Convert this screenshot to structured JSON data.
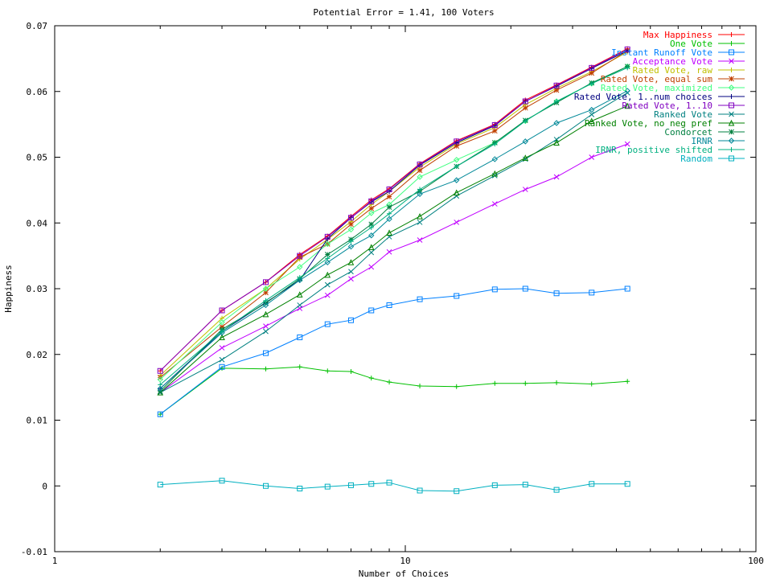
{
  "chart_data": {
    "type": "line",
    "title": "Potential Error = 1.41, 100 Voters",
    "xlabel": "Number of Choices",
    "ylabel": "Happiness",
    "xscale": "log",
    "xlim": [
      1,
      100
    ],
    "ylim": [
      -0.01,
      0.07
    ],
    "xticks": [
      {
        "v": 1,
        "label": "1"
      },
      {
        "v": 10,
        "label": "10"
      },
      {
        "v": 100,
        "label": "100"
      }
    ],
    "yticks": [
      {
        "v": -0.01,
        "label": "-0.01"
      },
      {
        "v": 0,
        "label": "0"
      },
      {
        "v": 0.01,
        "label": "0.01"
      },
      {
        "v": 0.02,
        "label": "0.02"
      },
      {
        "v": 0.03,
        "label": "0.03"
      },
      {
        "v": 0.04,
        "label": "0.04"
      },
      {
        "v": 0.05,
        "label": "0.05"
      },
      {
        "v": 0.06,
        "label": "0.06"
      },
      {
        "v": 0.07,
        "label": "0.07"
      }
    ],
    "grid": false,
    "legend": "top-right",
    "x": [
      2,
      3,
      4,
      5,
      6,
      7,
      8,
      9,
      11,
      14,
      18,
      22,
      27,
      34,
      43
    ],
    "series": [
      {
        "name": "Max Happiness",
        "color": "#ff0000",
        "marker": "plus",
        "values": [
          0.0175,
          0.0267,
          0.031,
          0.0352,
          0.038,
          0.041,
          0.0435,
          0.0452,
          0.049,
          0.0525,
          0.055,
          0.0587,
          0.061,
          0.0637,
          0.0665
        ]
      },
      {
        "name": "One Vote",
        "color": "#00c000",
        "marker": "plus",
        "values": [
          0.0109,
          0.0179,
          0.0178,
          0.0181,
          0.0175,
          0.0174,
          0.0164,
          0.0158,
          0.0152,
          0.0151,
          0.0156,
          0.0156,
          0.0157,
          0.0155,
          0.0159
        ]
      },
      {
        "name": "Instant Runoff Vote",
        "color": "#0080ff",
        "marker": "square",
        "values": [
          0.0109,
          0.0181,
          0.0202,
          0.0226,
          0.0246,
          0.0252,
          0.0267,
          0.0275,
          0.0284,
          0.0289,
          0.0299,
          0.03,
          0.0293,
          0.0294,
          0.03
        ]
      },
      {
        "name": "Acceptance Vote",
        "color": "#c000ff",
        "marker": "x",
        "values": [
          0.0142,
          0.021,
          0.0243,
          0.027,
          0.029,
          0.0315,
          0.0333,
          0.0356,
          0.0374,
          0.0401,
          0.0429,
          0.0451,
          0.047,
          0.05,
          0.052
        ]
      },
      {
        "name": "Rated Vote, raw",
        "color": "#c0c000",
        "marker": "plus",
        "values": [
          0.0168,
          0.0255,
          0.03,
          0.0345,
          0.0375,
          0.0402,
          0.0428,
          0.0448,
          0.0485,
          0.052,
          0.0545,
          0.058,
          0.0605,
          0.063,
          0.066
        ]
      },
      {
        "name": "Rated Vote, equal sum",
        "color": "#c04000",
        "marker": "star",
        "values": [
          0.0165,
          0.0242,
          0.0294,
          0.0348,
          0.0368,
          0.0398,
          0.0422,
          0.044,
          0.048,
          0.0517,
          0.054,
          0.0575,
          0.0602,
          0.0628,
          0.0662
        ]
      },
      {
        "name": "Rated Vote, maximized",
        "color": "#40ff80",
        "marker": "diamond",
        "values": [
          0.0162,
          0.0249,
          0.03,
          0.0333,
          0.0368,
          0.039,
          0.0415,
          0.0428,
          0.047,
          0.0496,
          0.0522,
          0.0555,
          0.0585,
          0.0612,
          0.0638
        ]
      },
      {
        "name": "Rated Vote, 1..num choices",
        "color": "#000080",
        "marker": "plus",
        "values": [
          0.0148,
          0.0235,
          0.0279,
          0.0313,
          0.0376,
          0.0408,
          0.0432,
          0.0448,
          0.0488,
          0.0522,
          0.0548,
          0.0585,
          0.0608,
          0.0635,
          0.0662
        ]
      },
      {
        "name": "Rated Vote, 1..10",
        "color": "#8000c0",
        "marker": "square",
        "values": [
          0.0175,
          0.0267,
          0.031,
          0.035,
          0.0379,
          0.0408,
          0.0433,
          0.0451,
          0.0489,
          0.0524,
          0.0549,
          0.0585,
          0.0609,
          0.0636,
          0.0664
        ]
      },
      {
        "name": "Ranked Vote",
        "color": "#008080",
        "marker": "x",
        "values": [
          0.0142,
          0.0192,
          0.0235,
          0.0275,
          0.0306,
          0.0326,
          0.0355,
          0.0379,
          0.0401,
          0.0441,
          0.0472,
          0.0497,
          0.0527,
          0.0565,
          0.0598
        ]
      },
      {
        "name": "Ranked Vote, no neg pref",
        "color": "#008000",
        "marker": "triangle",
        "values": [
          0.0142,
          0.0226,
          0.0261,
          0.0291,
          0.0321,
          0.034,
          0.0363,
          0.0385,
          0.041,
          0.0446,
          0.0475,
          0.0499,
          0.0522,
          0.0555,
          0.0578
        ]
      },
      {
        "name": "Condorcet",
        "color": "#008040",
        "marker": "star",
        "values": [
          0.0144,
          0.0238,
          0.0278,
          0.0315,
          0.0352,
          0.0375,
          0.0398,
          0.0424,
          0.0448,
          0.0486,
          0.0522,
          0.0556,
          0.0583,
          0.0613,
          0.0638
        ]
      },
      {
        "name": "IRNR",
        "color": "#008898",
        "marker": "diamond",
        "values": [
          0.0148,
          0.0233,
          0.0275,
          0.0313,
          0.034,
          0.0364,
          0.0381,
          0.0406,
          0.0444,
          0.0465,
          0.0497,
          0.0524,
          0.0552,
          0.0572,
          0.0601
        ]
      },
      {
        "name": "IRNR, positive shifted",
        "color": "#00b080",
        "marker": "plus",
        "values": [
          0.0154,
          0.0235,
          0.0282,
          0.0317,
          0.0346,
          0.0372,
          0.0393,
          0.0414,
          0.0451,
          0.0486,
          0.052,
          0.0555,
          0.0585,
          0.0612,
          0.0636
        ]
      },
      {
        "name": "Random",
        "color": "#00b0c0",
        "marker": "square",
        "values": [
          0.0002,
          0.0008,
          0.0,
          -0.0004,
          -0.0001,
          0.0001,
          0.0003,
          0.0005,
          -0.0007,
          -0.0008,
          0.0001,
          0.0002,
          -0.0006,
          0.0003,
          0.0003
        ]
      }
    ]
  }
}
